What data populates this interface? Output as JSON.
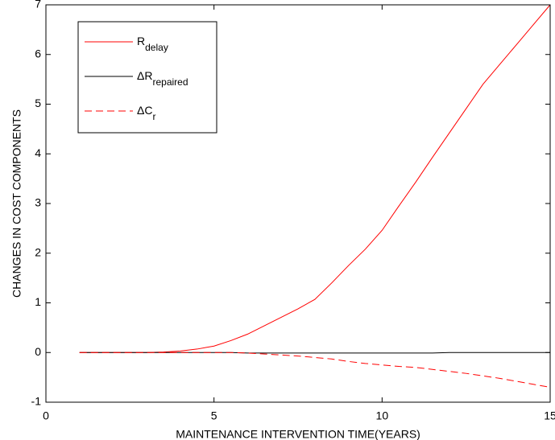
{
  "chart_data": {
    "type": "line",
    "x_label": "MAINTENANCE INTERVENTION TIME(YEARS)",
    "y_label": "CHANGES IN COST COMPONENTS",
    "x": [
      1,
      2,
      3,
      3.5,
      4,
      4.5,
      5,
      5.5,
      6,
      6.5,
      7,
      7.5,
      8,
      8.5,
      9,
      9.5,
      10,
      10.5,
      11,
      11.5,
      12,
      12.5,
      13,
      13.5,
      14,
      14.5,
      15
    ],
    "series": [
      {
        "name": "R",
        "subscript": "delay",
        "color": "#ff0000",
        "linestyle": "-",
        "values": [
          0,
          0,
          0,
          0.01,
          0.03,
          0.07,
          0.13,
          0.24,
          0.37,
          0.54,
          0.71,
          0.88,
          1.07,
          1.4,
          1.75,
          2.08,
          2.46,
          2.95,
          3.43,
          3.93,
          4.42,
          4.91,
          5.4,
          5.8,
          6.2,
          6.6,
          7.0
        ]
      },
      {
        "name": "ΔR",
        "subscript": "repaired",
        "color": "#000000",
        "linestyle": "-",
        "values": [
          0,
          0,
          0,
          0,
          0,
          0,
          0,
          0,
          -0.01,
          -0.01,
          -0.01,
          -0.01,
          -0.01,
          -0.01,
          -0.01,
          -0.01,
          -0.01,
          -0.01,
          -0.01,
          -0.01,
          0,
          0,
          0,
          0,
          0,
          0,
          0
        ]
      },
      {
        "name": "ΔC",
        "subscript": "r",
        "color": "#ff0000",
        "linestyle": "--",
        "values": [
          0,
          0,
          0,
          0,
          0,
          0,
          0,
          0,
          -0.01,
          -0.03,
          -0.05,
          -0.07,
          -0.1,
          -0.13,
          -0.18,
          -0.22,
          -0.25,
          -0.28,
          -0.3,
          -0.34,
          -0.38,
          -0.42,
          -0.47,
          -0.52,
          -0.58,
          -0.64,
          -0.7
        ]
      }
    ],
    "xlim": [
      0,
      15
    ],
    "xticks": [
      0,
      5,
      10,
      15
    ],
    "ylim": [
      -1,
      7
    ],
    "yticks": [
      -1,
      0,
      1,
      2,
      3,
      4,
      5,
      6,
      7
    ],
    "grid": false,
    "legend": "upper left"
  }
}
